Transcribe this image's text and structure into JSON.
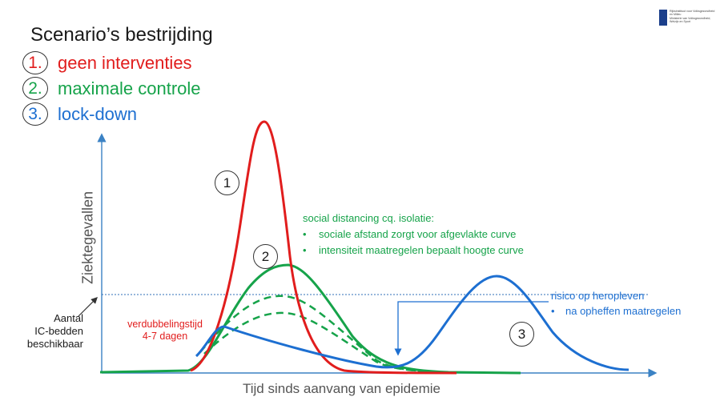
{
  "title": "Scenario’s bestrijding",
  "scenarios": [
    {
      "num": "1.",
      "label": "geen interventies",
      "color": "#e11d1d"
    },
    {
      "num": "2.",
      "label": "maximale controle",
      "color": "#16a34a"
    },
    {
      "num": "3.",
      "label": "lock-down",
      "color": "#1d6fd1"
    }
  ],
  "logo": {
    "lines": [
      "Rijksinstituut voor Volksgezondheid",
      "en Milieu",
      "Ministerie van Volksgezondheid,",
      "Welzijn en Sport"
    ]
  },
  "axes": {
    "ylabel": "Ziektegevallen",
    "xlabel": "Tijd sinds aanvang van epidemie"
  },
  "markers": {
    "one": "1",
    "two": "2",
    "three": "3"
  },
  "annotations": {
    "green_head": "social distancing cq. isolatie:",
    "green_bullets": [
      "sociale afstand zorgt voor afgevlakte curve",
      "intensiteit maatregelen bepaalt hoogte curve"
    ],
    "blue_head": "risico op heropleven",
    "blue_bullets": [
      "na opheffen maatregelen"
    ],
    "red_line1": "verdubbelingstijd",
    "red_line2": "4-7 dagen",
    "ic_line1": "Aantal",
    "ic_line2": "IC-bedden",
    "ic_line3": "beschikbaar"
  },
  "colors": {
    "red": "#e11d1d",
    "green": "#16a34a",
    "blue": "#1d6fd1",
    "axis": "#3b82c4",
    "logo": "#1b3f8b"
  }
}
